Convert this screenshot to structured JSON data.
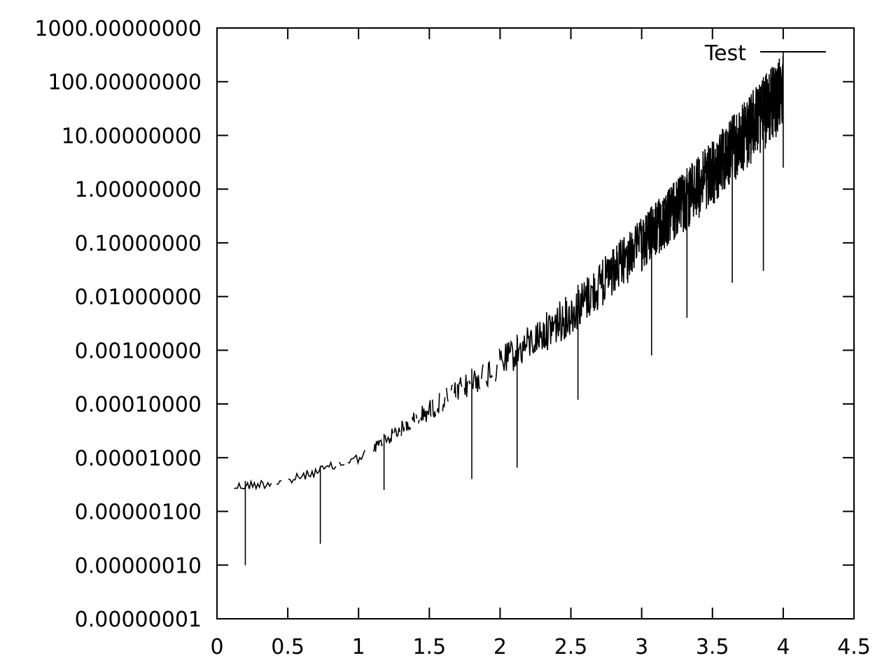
{
  "chart_data": {
    "type": "line",
    "title": "",
    "xlabel": "",
    "ylabel": "",
    "y_scale": "log",
    "xlim": [
      0,
      4.5
    ],
    "ylim": [
      1e-08,
      1000
    ],
    "x_ticks": [
      0,
      0.5,
      1,
      1.5,
      2,
      2.5,
      3,
      3.5,
      4,
      4.5
    ],
    "x_tick_labels": [
      "0",
      "0.5",
      "1",
      "1.5",
      "2",
      "2.5",
      "3",
      "3.5",
      "4",
      "4.5"
    ],
    "y_ticks": [
      1e-08,
      1e-07,
      1e-06,
      1e-05,
      0.0001,
      0.001,
      0.01,
      0.1,
      1,
      10,
      100,
      1000
    ],
    "y_tick_labels": [
      "0.00000001",
      "0.00000010",
      "0.00000100",
      "0.00001000",
      "0.00010000",
      "0.00100000",
      "0.01000000",
      "0.10000000",
      "1.00000000",
      "10.00000000",
      "100.00000000",
      "1000.00000000"
    ],
    "grid": false,
    "legend_position": "top-right",
    "series": [
      {
        "name": "Test",
        "color": "#000000",
        "envelope_points": [
          {
            "x": 0.12,
            "y": 3.5e-06
          },
          {
            "x": 0.5,
            "y": 4.5e-06
          },
          {
            "x": 1.0,
            "y": 1.2e-05
          },
          {
            "x": 1.5,
            "y": 0.00012
          },
          {
            "x": 2.0,
            "y": 0.0011
          },
          {
            "x": 2.5,
            "y": 0.012
          },
          {
            "x": 3.0,
            "y": 0.3
          },
          {
            "x": 3.5,
            "y": 8
          },
          {
            "x": 4.0,
            "y": 350
          }
        ],
        "min_spikes": [
          {
            "x": 0.2,
            "y": 1e-07
          },
          {
            "x": 0.73,
            "y": 2.5e-07
          },
          {
            "x": 1.18,
            "y": 2.5e-06
          },
          {
            "x": 1.8,
            "y": 4e-06
          },
          {
            "x": 2.12,
            "y": 6.5e-06
          },
          {
            "x": 2.55,
            "y": 0.00012
          },
          {
            "x": 3.07,
            "y": 0.0008
          },
          {
            "x": 3.32,
            "y": 0.004
          },
          {
            "x": 3.64,
            "y": 0.018
          },
          {
            "x": 3.86,
            "y": 0.03
          },
          {
            "x": 4.0,
            "y": 2.5
          }
        ]
      }
    ]
  }
}
